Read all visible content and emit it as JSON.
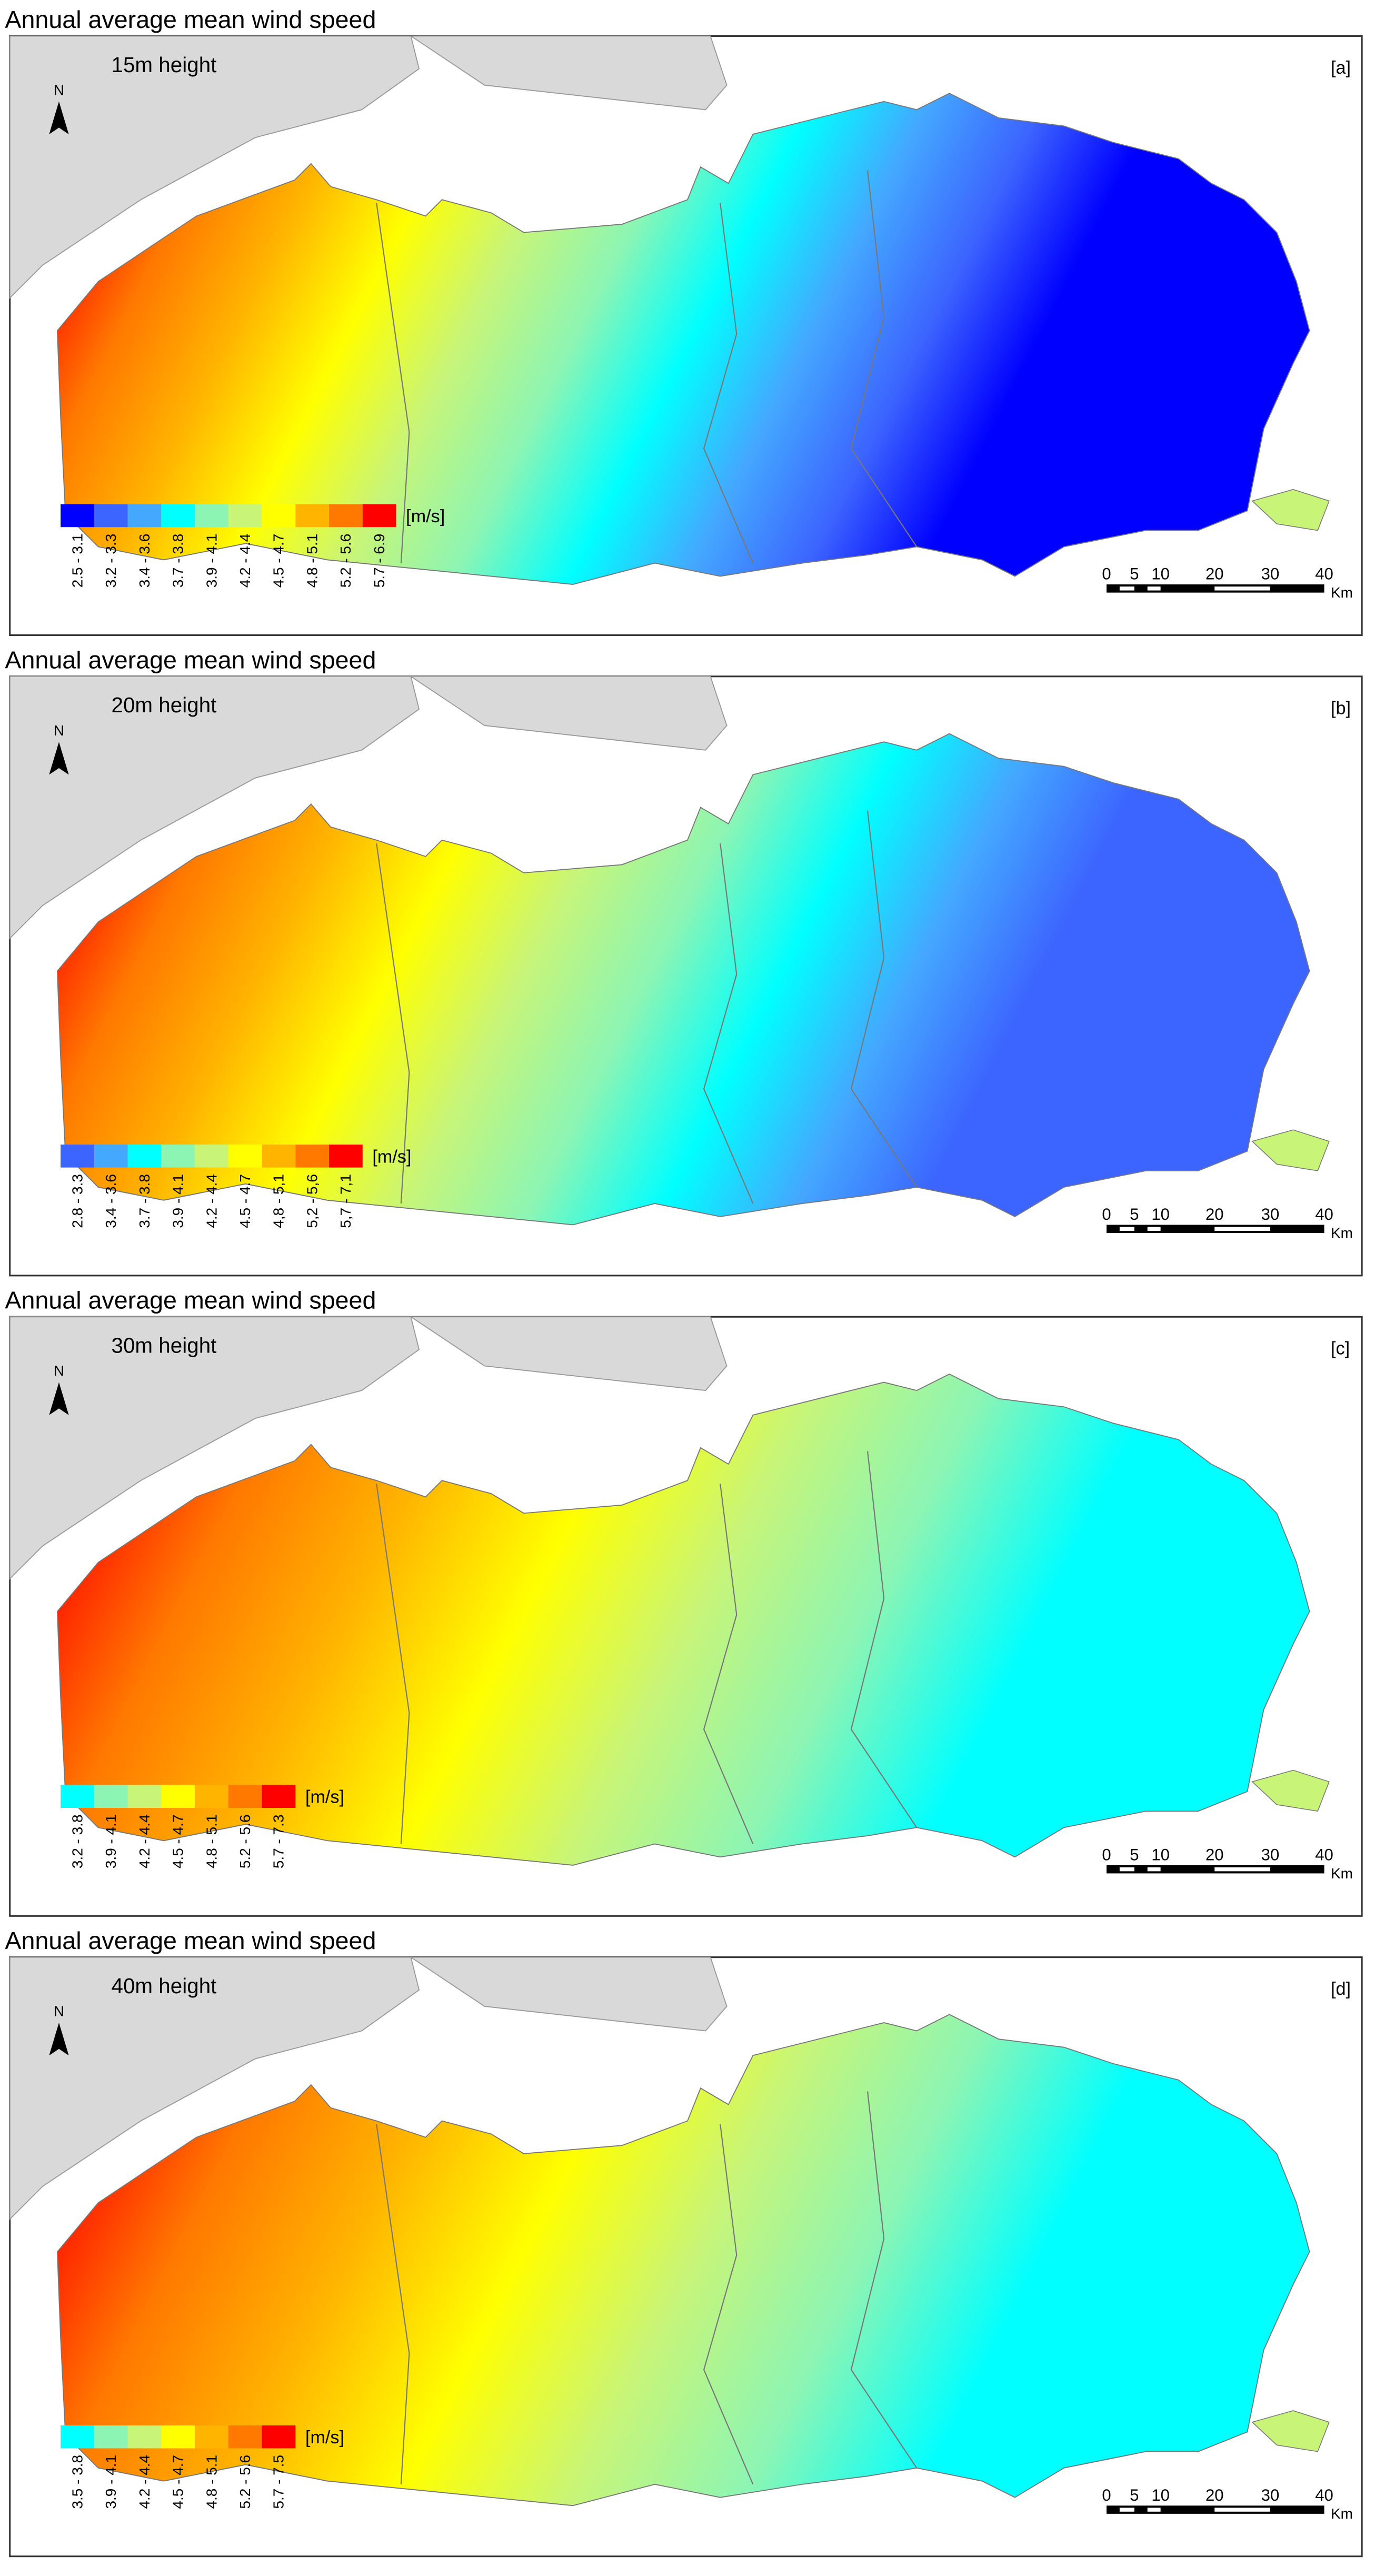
{
  "panels": [
    {
      "title": "Annual average mean wind speed",
      "height_label": "15m height",
      "tag": "[a]",
      "north": "N",
      "legend": {
        "unit": "[m/s]",
        "classes": [
          "2.5 - 3.1",
          "3.2 - 3.3",
          "3.4 - 3.6",
          "3.7 - 3.8",
          "3.9 - 4.1",
          "4.2 - 4.4",
          "4.5 - 4.7",
          "4.8 - 5.1",
          "5.2 - 5.6",
          "5.7 - 6.9"
        ],
        "colors": [
          "#0000ff",
          "#3c64ff",
          "#44a8ff",
          "#00ffff",
          "#8cf5b4",
          "#c8f578",
          "#ffff00",
          "#ffb400",
          "#ff7800",
          "#ff0000"
        ]
      },
      "scale_bar": {
        "labels": [
          "0",
          "5",
          "10",
          "20",
          "30",
          "40"
        ],
        "unit": "Km"
      }
    },
    {
      "title": "Annual average mean wind speed",
      "height_label": "20m height",
      "tag": "[b]",
      "north": "N",
      "legend": {
        "unit": "[m/s]",
        "classes": [
          "2.8 - 3.3",
          "3.4 - 3.6",
          "3.7 - 3.8",
          "3.9 - 4.1",
          "4.2 - 4.4",
          "4.5 - 4.7",
          "4,8 - 5,1",
          "5,2 - 5,6",
          "5,7 - 7,1"
        ],
        "colors": [
          "#3c64ff",
          "#44a8ff",
          "#00ffff",
          "#8cf5b4",
          "#c8f578",
          "#ffff00",
          "#ffb400",
          "#ff7800",
          "#ff0000"
        ]
      },
      "scale_bar": {
        "labels": [
          "0",
          "5",
          "10",
          "20",
          "30",
          "40"
        ],
        "unit": "Km"
      }
    },
    {
      "title": "Annual average mean wind speed",
      "height_label": "30m height",
      "tag": "[c]",
      "north": "N",
      "legend": {
        "unit": "[m/s]",
        "classes": [
          "3.2 - 3.8",
          "3.9 - 4.1",
          "4.2 - 4.4",
          "4.5 - 4.7",
          "4.8 - 5.1",
          "5.2 - 5.6",
          "5.7 - 7.3"
        ],
        "colors": [
          "#00ffff",
          "#8cf5b4",
          "#c8f578",
          "#ffff00",
          "#ffb400",
          "#ff7800",
          "#ff0000"
        ]
      },
      "scale_bar": {
        "labels": [
          "0",
          "5",
          "10",
          "20",
          "30",
          "40"
        ],
        "unit": "Km"
      }
    },
    {
      "title": "Annual average mean wind speed",
      "height_label": "40m height",
      "tag": "[d]",
      "north": "N",
      "legend": {
        "unit": "[m/s]",
        "classes": [
          "3.5 - 3.8",
          "3.9 - 4.1",
          "4.2 - 4.4",
          "4.5 - 4.7",
          "4.8 - 5.1",
          "5.2 - 5.6",
          "5.7 - 7.5"
        ],
        "colors": [
          "#00ffff",
          "#8cf5b4",
          "#c8f578",
          "#ffff00",
          "#ffb400",
          "#ff7800",
          "#ff0000"
        ]
      },
      "scale_bar": {
        "labels": [
          "0",
          "5",
          "10",
          "20",
          "30",
          "40"
        ],
        "unit": "Km"
      }
    }
  ]
}
